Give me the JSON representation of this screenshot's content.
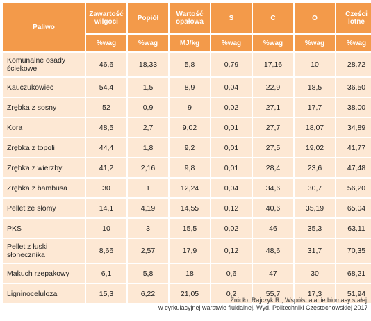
{
  "table": {
    "header": {
      "fuel": "Paliwo",
      "columns": [
        "Zawartość wilgoci",
        "Popiół",
        "Wartość opałowa",
        "S",
        "C",
        "O",
        "Części lotne"
      ],
      "units": [
        "%wag",
        "%wag",
        "MJ/kg",
        "%wag",
        "%wag",
        "%wag",
        "%wag"
      ]
    },
    "rows": [
      {
        "name": "Komunalne osady ściekowe",
        "values": [
          "46,6",
          "18,33",
          "5,8",
          "0,79",
          "17,16",
          "10",
          "28,72"
        ]
      },
      {
        "name": "Kauczukowiec",
        "values": [
          "54,4",
          "1,5",
          "8,9",
          "0,04",
          "22,9",
          "18,5",
          "36,50"
        ]
      },
      {
        "name": "Zrębka z sosny",
        "values": [
          "52",
          "0,9",
          "9",
          "0,02",
          "27,1",
          "17,7",
          "38,00"
        ]
      },
      {
        "name": "Kora",
        "values": [
          "48,5",
          "2,7",
          "9,02",
          "0,01",
          "27,7",
          "18,07",
          "34,89"
        ]
      },
      {
        "name": "Zrębka z topoli",
        "values": [
          "44,4",
          "1,8",
          "9,2",
          "0,01",
          "27,5",
          "19,02",
          "41,77"
        ]
      },
      {
        "name": "Zrębka z wierzby",
        "values": [
          "41,2",
          "2,16",
          "9,8",
          "0,01",
          "28,4",
          "23,6",
          "47,48"
        ]
      },
      {
        "name": "Zrębka z bambusa",
        "values": [
          "30",
          "1",
          "12,24",
          "0,04",
          "34,6",
          "30,7",
          "56,20"
        ]
      },
      {
        "name": "Pellet ze słomy",
        "values": [
          "14,1",
          "4,19",
          "14,55",
          "0,12",
          "40,6",
          "35,19",
          "65,04"
        ]
      },
      {
        "name": "PKS",
        "values": [
          "10",
          "3",
          "15,5",
          "0,02",
          "46",
          "35,3",
          "63,11"
        ]
      },
      {
        "name": "Pellet z łuski słonecznika",
        "values": [
          "8,66",
          "2,57",
          "17,9",
          "0,12",
          "48,6",
          "31,7",
          "70,35"
        ]
      },
      {
        "name": "Makuch rzepakowy",
        "values": [
          "6,1",
          "5,8",
          "18",
          "0,6",
          "47",
          "30",
          "68,21"
        ]
      },
      {
        "name": "Ligninoceluloza",
        "values": [
          "15,3",
          "6,22",
          "21,05",
          "0,2",
          "55,7",
          "17,3",
          "51,94"
        ]
      }
    ]
  },
  "source": {
    "line1": "Źródło: Rajczyk R., Współspalanie biomasy stałej",
    "line2": "w cyrkulacyjnej warstwie fluidalnej, Wyd. Politechniki Częstochowskiej 2017"
  }
}
